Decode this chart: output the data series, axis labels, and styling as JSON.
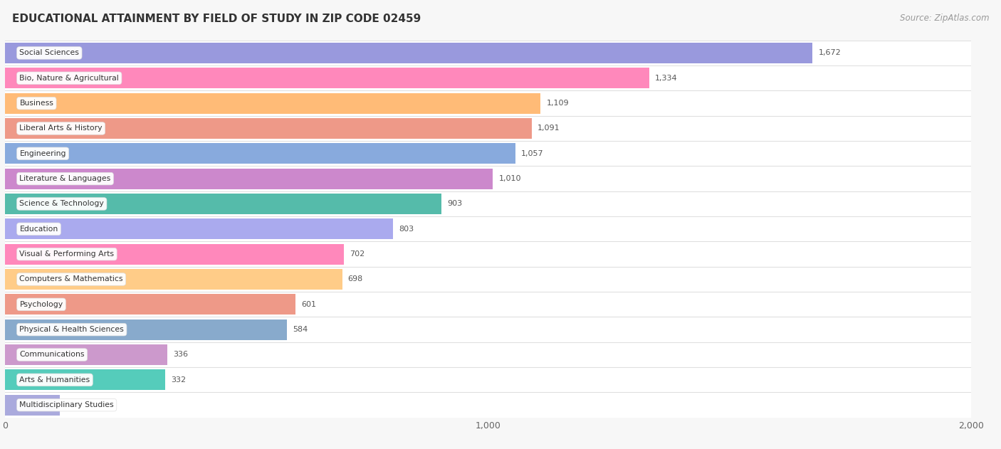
{
  "title": "EDUCATIONAL ATTAINMENT BY FIELD OF STUDY IN ZIP CODE 02459",
  "source": "Source: ZipAtlas.com",
  "categories": [
    "Social Sciences",
    "Bio, Nature & Agricultural",
    "Business",
    "Liberal Arts & History",
    "Engineering",
    "Literature & Languages",
    "Science & Technology",
    "Education",
    "Visual & Performing Arts",
    "Computers & Mathematics",
    "Psychology",
    "Physical & Health Sciences",
    "Communications",
    "Arts & Humanities",
    "Multidisciplinary Studies"
  ],
  "values": [
    1672,
    1334,
    1109,
    1091,
    1057,
    1010,
    903,
    803,
    702,
    698,
    601,
    584,
    336,
    332,
    114
  ],
  "bar_colors": [
    "#9999dd",
    "#ff88bb",
    "#ffbb77",
    "#ee9988",
    "#88aadd",
    "#cc88cc",
    "#55bbaa",
    "#aaaaee",
    "#ff88bb",
    "#ffcc88",
    "#ee9988",
    "#88aacc",
    "#cc99cc",
    "#55ccbb",
    "#aaaadd"
  ],
  "xlim": [
    0,
    2000
  ],
  "xticks": [
    0,
    1000,
    2000
  ],
  "background_color": "#f7f7f7",
  "row_bg_color": "#ffffff",
  "separator_color": "#e0e0e0",
  "title_fontsize": 11,
  "source_fontsize": 8.5,
  "bar_height": 0.82,
  "figsize": [
    14.06,
    6.31
  ]
}
